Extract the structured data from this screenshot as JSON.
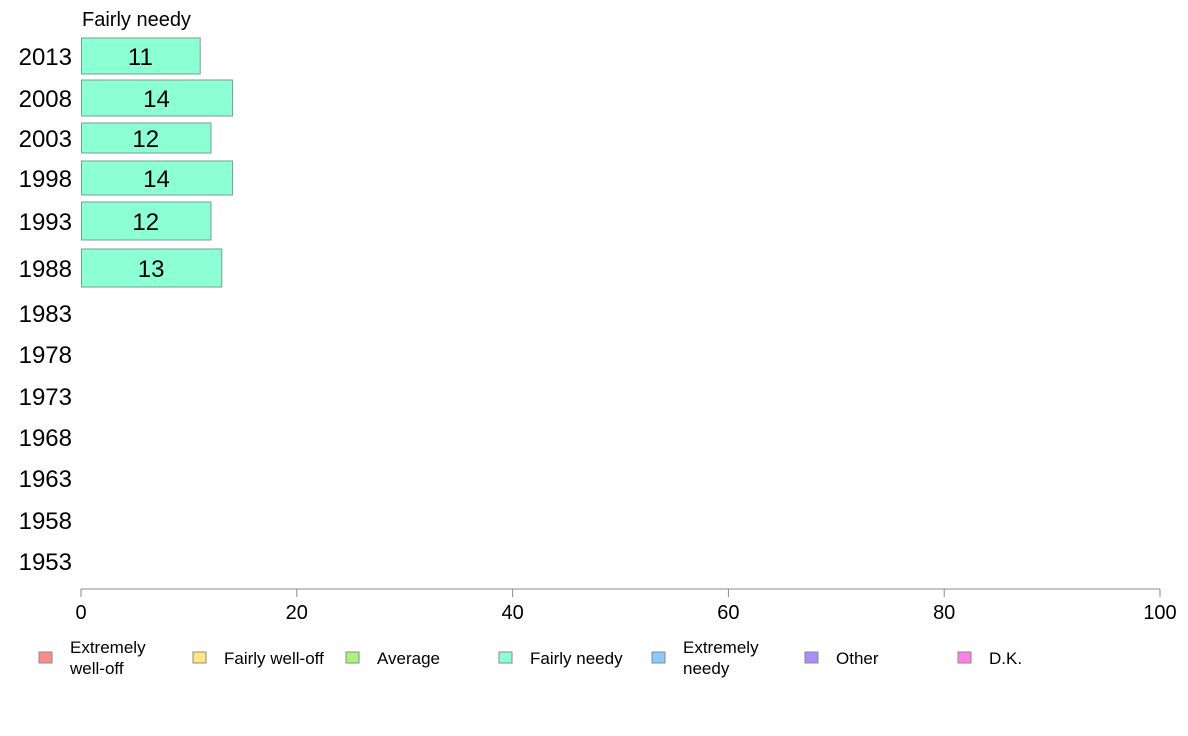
{
  "chart_data": {
    "type": "bar",
    "orientation": "horizontal",
    "title": "Fairly needy",
    "categories": [
      "2013",
      "2008",
      "2003",
      "1998",
      "1993",
      "1988",
      "1983",
      "1978",
      "1973",
      "1968",
      "1963",
      "1958",
      "1953"
    ],
    "series": [
      {
        "name": "Fairly needy",
        "color": "#8cffd4",
        "values": [
          11,
          14,
          12,
          14,
          12,
          13,
          null,
          null,
          null,
          null,
          null,
          null,
          null
        ],
        "labels": [
          "11",
          "14",
          "12",
          "14",
          "12",
          "13",
          "",
          "",
          "",
          "",
          "",
          "",
          ""
        ]
      }
    ],
    "xlim": [
      0,
      100
    ],
    "xticks": [
      "0",
      "20",
      "40",
      "60",
      "80",
      "100"
    ],
    "xlabel": "",
    "ylabel": "",
    "grid": false,
    "legend_position": "bottom",
    "legend": [
      {
        "label": [
          "Extremely",
          "well-off"
        ],
        "color": "#ff8a8a"
      },
      {
        "label": [
          "Fairly well-off"
        ],
        "color": "#ffe680"
      },
      {
        "label": [
          "Average"
        ],
        "color": "#a8f57a"
      },
      {
        "label": [
          "Fairly needy"
        ],
        "color": "#8cffd4"
      },
      {
        "label": [
          "Extremely",
          "needy"
        ],
        "color": "#8ac8ff"
      },
      {
        "label": [
          "Other"
        ],
        "color": "#a98cff"
      },
      {
        "label": [
          "D.K."
        ],
        "color": "#ff80ea"
      }
    ]
  }
}
